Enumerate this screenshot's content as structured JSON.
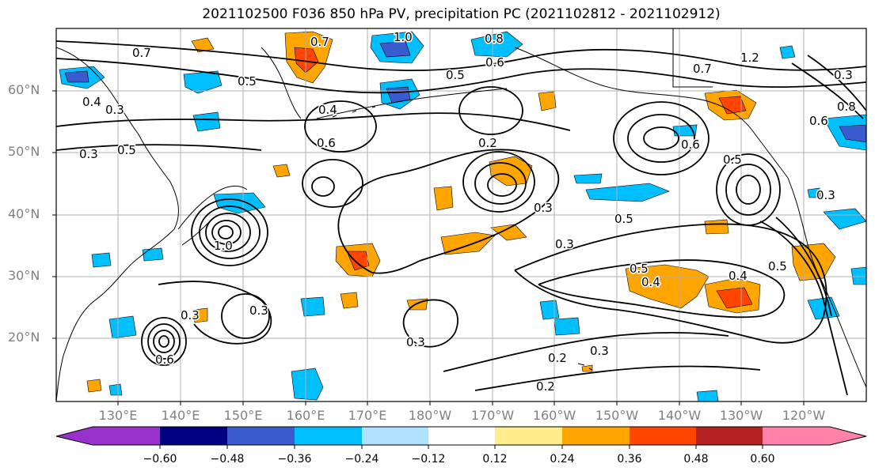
{
  "title": "2021102500 F036 850 hPa PV, precipitation PC (2021102812 - 2021102912)",
  "latitude_labels": [
    "60°N",
    "50°N",
    "40°N",
    "30°N",
    "20°N"
  ],
  "longitude_labels": [
    "130°E",
    "140°E",
    "150°E",
    "160°E",
    "170°E",
    "180°W",
    "170°W",
    "160°W",
    "150°W",
    "140°W",
    "130°W",
    "120°W"
  ],
  "contour_labels": [
    "0.7",
    "1.0",
    "0.8",
    "0.6",
    "0.5",
    "0.3",
    "0.4",
    "0.5",
    "0.6",
    "0.3",
    "0.2",
    "0.4",
    "0.5",
    "0.3",
    "0.5",
    "0.3",
    "0.4",
    "0.5",
    "0.3",
    "0.2",
    "0.2",
    "0.7",
    "0.6",
    "0.5",
    "0.8",
    "1.2",
    "0.6",
    "0.3",
    "0.3",
    "0.7",
    "0.5",
    "0.4",
    "0.3",
    "1.0",
    "0.6",
    "0.3",
    "0.3"
  ],
  "colorbar": {
    "tick_labels": [
      "−0.60",
      "−0.48",
      "−0.36",
      "−0.24",
      "−0.12",
      "0.12",
      "0.24",
      "0.36",
      "0.48",
      "0.60"
    ],
    "colors": [
      "#9932cc",
      "#000080",
      "#3a5bcd",
      "#00bfff",
      "#b0e2ff",
      "#ffffff",
      "#ffec8b",
      "#ffa500",
      "#ff4500",
      "#b22222",
      "#ff82ab"
    ]
  },
  "colors": {
    "pos_light": "#ffec8b",
    "pos_mid": "#ffa500",
    "pos_high": "#ff4500",
    "neg_light": "#b0e2ff",
    "neg_mid": "#00bfff",
    "neg_high": "#3a5bcd"
  }
}
